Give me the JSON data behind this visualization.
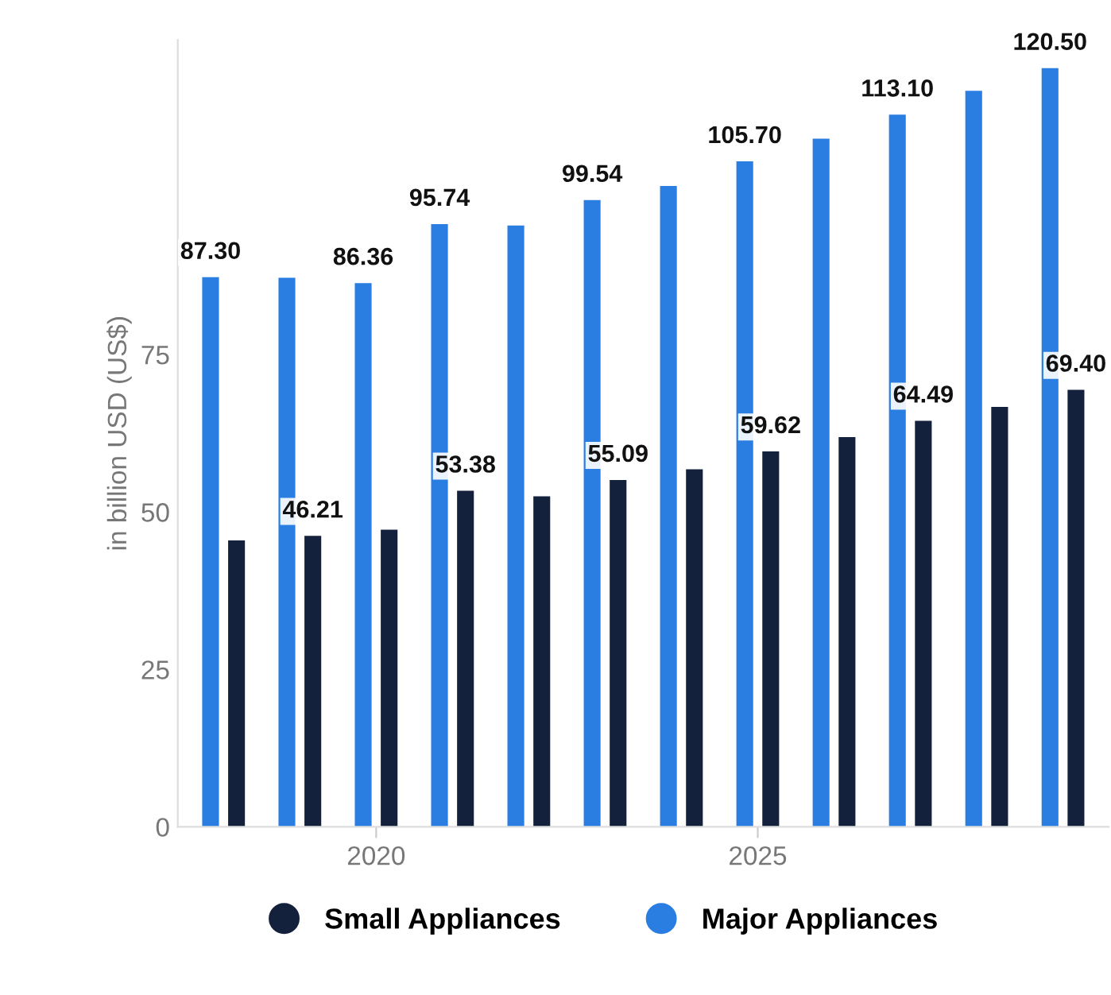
{
  "chart_data": {
    "type": "bar",
    "ylabel": "in billion USD (US$)",
    "x": [
      2018,
      2019,
      2020,
      2021,
      2022,
      2023,
      2024,
      2025,
      2026,
      2027,
      2028,
      2029
    ],
    "series": [
      {
        "name": "Small Appliances",
        "color": "#14213d",
        "values": [
          45.5,
          46.21,
          47.2,
          53.38,
          52.5,
          55.09,
          56.8,
          59.62,
          61.9,
          64.49,
          66.7,
          69.4
        ],
        "value_labels": [
          null,
          "46.21",
          null,
          "53.38",
          null,
          "55.09",
          null,
          "59.62",
          null,
          "64.49",
          null,
          "69.40"
        ]
      },
      {
        "name": "Major Appliances",
        "color": "#2a7de1",
        "values": [
          87.3,
          87.2,
          86.36,
          95.74,
          95.5,
          99.54,
          101.8,
          105.7,
          109.3,
          113.1,
          116.9,
          120.5
        ],
        "value_labels": [
          "87.30",
          null,
          "86.36",
          "95.74",
          null,
          "99.54",
          null,
          "105.70",
          null,
          "113.10",
          null,
          "120.50"
        ]
      }
    ],
    "xlim": [
      2017.4,
      2029.6
    ],
    "xticks": [
      2020,
      2025
    ],
    "ylim": [
      0,
      125
    ],
    "yticks": [
      0,
      25,
      50,
      75
    ],
    "grid": false,
    "legend": "bottom"
  }
}
